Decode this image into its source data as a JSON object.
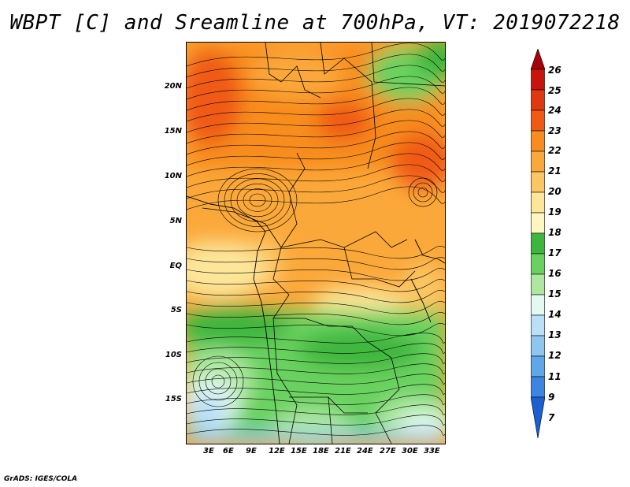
{
  "title": "WBPT [C] and Sreamline at 700hPa, VT: 2019072218",
  "credit": "GrADS: IGES/COLA",
  "lat_labels": [
    "20N",
    "15N",
    "10N",
    "5N",
    "EQ",
    "5S",
    "10S",
    "15S"
  ],
  "lon_labels": [
    "3E",
    "6E",
    "9E",
    "12E",
    "15E",
    "18E",
    "21E",
    "24E",
    "27E",
    "30E",
    "33E"
  ],
  "colorbar": {
    "labels": [
      "26",
      "25",
      "24",
      "23",
      "22",
      "21",
      "20",
      "19",
      "18",
      "17",
      "16",
      "15",
      "14",
      "13",
      "12",
      "11",
      "9",
      "7"
    ],
    "colors": [
      "#a50008",
      "#c8140a",
      "#e0380f",
      "#f05a14",
      "#f88c1e",
      "#fba83a",
      "#fcc663",
      "#fde69a",
      "#fff6c0",
      "#3db63d",
      "#69d15e",
      "#aee8a0",
      "#e4f9f1",
      "#b9e0f6",
      "#8ec6f0",
      "#5ea8e9",
      "#3c85e0",
      "#1c5fd0"
    ]
  }
}
